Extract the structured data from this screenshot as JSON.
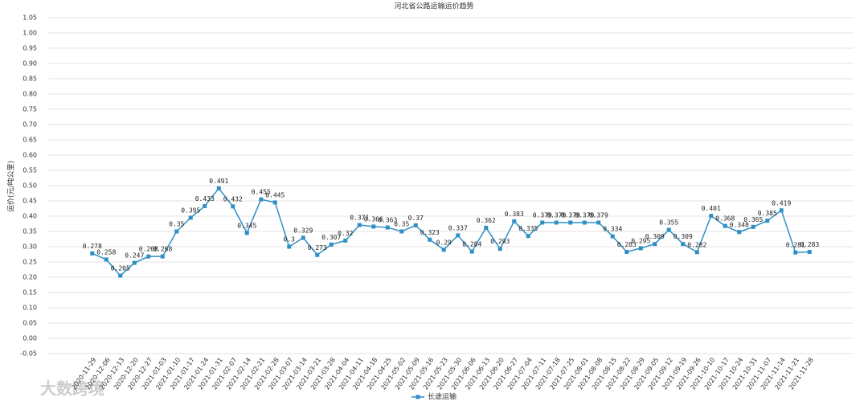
{
  "chart_data": {
    "type": "line",
    "title": "河北省公路运输运价趋势",
    "y_label": "运价(元/吨公里)",
    "watermark": "大数跨境",
    "categories": [
      "2020-11-29",
      "2020-12-06",
      "2020-12-13",
      "2020-12-20",
      "2020-12-27",
      "2021-01-03",
      "2021-01-10",
      "2021-01-17",
      "2021-01-24",
      "2021-01-31",
      "2021-02-07",
      "2021-02-14",
      "2021-02-21",
      "2021-02-28",
      "2021-03-07",
      "2021-03-14",
      "2021-03-21",
      "2021-03-28",
      "2021-04-04",
      "2021-04-11",
      "2021-04-18",
      "2021-04-25",
      "2021-05-02",
      "2021-05-09",
      "2021-05-16",
      "2021-05-23",
      "2021-05-30",
      "2021-06-06",
      "2021-06-13",
      "2021-06-20",
      "2021-06-27",
      "2021-07-04",
      "2021-07-11",
      "2021-07-18",
      "2021-07-25",
      "2021-08-01",
      "2021-08-08",
      "2021-08-15",
      "2021-08-22",
      "2021-08-29",
      "2021-09-05",
      "2021-09-12",
      "2021-09-19",
      "2021-09-26",
      "2021-10-10",
      "2021-10-17",
      "2021-10-24",
      "2021-10-31",
      "2021-11-07",
      "2021-11-14",
      "2021-11-21",
      "2021-11-28"
    ],
    "series": [
      {
        "name": "长途运输",
        "color": "#2f8fc4",
        "values": [
          0.278,
          0.258,
          0.205,
          0.247,
          0.268,
          0.268,
          0.35,
          0.395,
          0.433,
          0.491,
          0.432,
          0.345,
          0.455,
          0.445,
          0.3,
          0.329,
          0.273,
          0.307,
          0.32,
          0.371,
          0.366,
          0.363,
          0.35,
          0.37,
          0.323,
          0.29,
          0.337,
          0.284,
          0.362,
          0.293,
          0.383,
          0.335,
          0.379,
          0.379,
          0.379,
          0.379,
          0.379,
          0.334,
          0.283,
          0.295,
          0.309,
          0.355,
          0.309,
          0.282,
          0.401,
          0.368,
          0.348,
          0.365,
          0.385,
          0.419,
          0.281,
          0.283
        ]
      }
    ],
    "ylim": [
      -0.05,
      1.05
    ],
    "yticks": [
      -0.05,
      {
        "value": 0,
        "label": "0.00"
      },
      0.05,
      {
        "value": 0.1,
        "label": "0.10"
      },
      0.15,
      {
        "value": 0.2,
        "label": "0.20"
      },
      0.25,
      {
        "value": 0.3,
        "label": "0.30"
      },
      0.35,
      {
        "value": 0.4,
        "label": "0.40"
      },
      0.45,
      {
        "value": 0.5,
        "label": "0.50"
      },
      0.55,
      {
        "value": 0.6,
        "label": "0.60"
      },
      0.65,
      {
        "value": 0.7,
        "label": "0.70"
      },
      0.75,
      {
        "value": 0.8,
        "label": "0.80"
      },
      0.85,
      {
        "value": 0.9,
        "label": "0.90"
      },
      0.95,
      {
        "value": 1,
        "label": "1.00"
      },
      1.05
    ],
    "grid": true,
    "legend": "bottom"
  }
}
